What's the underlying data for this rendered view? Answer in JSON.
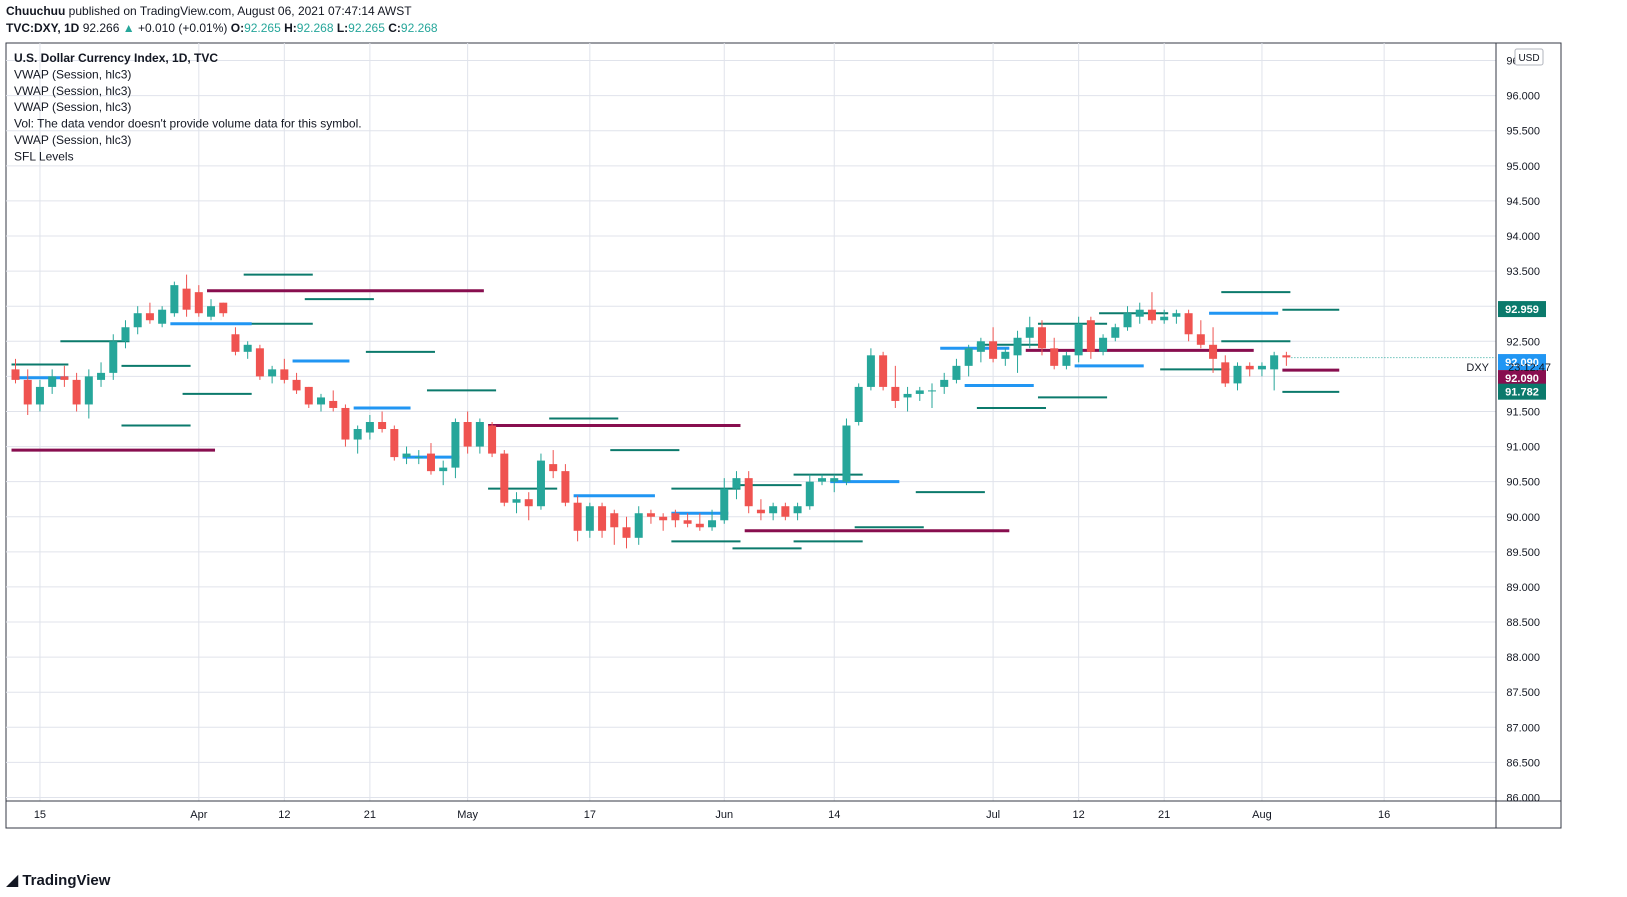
{
  "header": {
    "author": "Chuuchuu",
    "published": "published on TradingView.com, August 06, 2021 07:47:14 AWST",
    "symbol": "TVC:DXY, 1D",
    "price": "92.266",
    "change_arrow": "▲",
    "change": "+0.010 (+0.01%)",
    "o_label": "O:",
    "o_value": "92.265",
    "h_label": "H:",
    "h_value": "92.268",
    "l_label": "L:",
    "l_value": "92.265",
    "c_label": "C:",
    "c_value": "92.268"
  },
  "legend": [
    "U.S. Dollar Currency Index, 1D, TVC",
    "VWAP (Session, hlc3)",
    "VWAP (Session, hlc3)",
    "VWAP (Session, hlc3)",
    "Vol: The data vendor doesn't provide volume data for this symbol.",
    "VWAP (Session, hlc3)",
    "SFL Levels"
  ],
  "currency_badge": "USD",
  "symbol_tag": "DXY",
  "countdown": "23:12:47",
  "footer": {
    "brand": "TradingView",
    "logo_icon": "tradingview-logo-icon"
  },
  "colors": {
    "up": "#26a69a",
    "down": "#ef5350",
    "vwap_blue": "#2196f3",
    "level_teal": "#0b7a6c",
    "level_maroon": "#880e4f",
    "badge_teal": "#0b7a6c",
    "badge_blue": "#2196f3",
    "badge_maroon": "#880e4f"
  },
  "chart_data": {
    "type": "candlestick",
    "y_ticks": [
      "96.500",
      "96.000",
      "95.500",
      "95.000",
      "94.500",
      "94.000",
      "93.500",
      "93.000",
      "92.500",
      "92.000",
      "91.500",
      "91.000",
      "90.500",
      "90.000",
      "89.500",
      "89.000",
      "88.500",
      "88.000",
      "87.500",
      "87.000",
      "86.500",
      "86.000"
    ],
    "ylim": [
      85.95,
      96.75
    ],
    "x_ticks": [
      {
        "label": "15",
        "date": "2021-03-15"
      },
      {
        "label": "Apr",
        "date": "2021-04-01"
      },
      {
        "label": "12",
        "date": "2021-04-12"
      },
      {
        "label": "21",
        "date": "2021-04-21"
      },
      {
        "label": "May",
        "date": "2021-05-03"
      },
      {
        "label": "17",
        "date": "2021-05-17"
      },
      {
        "label": "Jun",
        "date": "2021-06-01"
      },
      {
        "label": "14",
        "date": "2021-06-14"
      },
      {
        "label": "Jul",
        "date": "2021-07-01"
      },
      {
        "label": "12",
        "date": "2021-07-12"
      },
      {
        "label": "21",
        "date": "2021-07-21"
      },
      {
        "label": "Aug",
        "date": "2021-08-02"
      },
      {
        "label": "16",
        "date": "2021-08-16"
      }
    ],
    "candles": [
      {
        "o": 92.1,
        "h": 92.25,
        "l": 91.9,
        "c": 91.95
      },
      {
        "o": 91.95,
        "h": 92.1,
        "l": 91.45,
        "c": 91.6
      },
      {
        "o": 91.6,
        "h": 91.95,
        "l": 91.5,
        "c": 91.85
      },
      {
        "o": 91.85,
        "h": 92.1,
        "l": 91.75,
        "c": 92.0
      },
      {
        "o": 92.0,
        "h": 92.15,
        "l": 91.85,
        "c": 91.95
      },
      {
        "o": 91.95,
        "h": 92.05,
        "l": 91.5,
        "c": 91.6
      },
      {
        "o": 91.6,
        "h": 92.1,
        "l": 91.4,
        "c": 92.0
      },
      {
        "o": 91.95,
        "h": 92.2,
        "l": 91.85,
        "c": 92.05
      },
      {
        "o": 92.05,
        "h": 92.6,
        "l": 91.95,
        "c": 92.5
      },
      {
        "o": 92.5,
        "h": 92.8,
        "l": 92.4,
        "c": 92.7
      },
      {
        "o": 92.7,
        "h": 93.0,
        "l": 92.6,
        "c": 92.9
      },
      {
        "o": 92.9,
        "h": 93.05,
        "l": 92.75,
        "c": 92.8
      },
      {
        "o": 92.75,
        "h": 93.0,
        "l": 92.7,
        "c": 92.95
      },
      {
        "o": 92.9,
        "h": 93.35,
        "l": 92.85,
        "c": 93.3
      },
      {
        "o": 93.25,
        "h": 93.45,
        "l": 92.85,
        "c": 92.95
      },
      {
        "o": 93.2,
        "h": 93.3,
        "l": 92.85,
        "c": 92.9
      },
      {
        "o": 92.85,
        "h": 93.1,
        "l": 92.8,
        "c": 93.0
      },
      {
        "o": 93.05,
        "h": 93.05,
        "l": 92.85,
        "c": 92.9
      },
      {
        "o": 92.6,
        "h": 92.7,
        "l": 92.3,
        "c": 92.35
      },
      {
        "o": 92.35,
        "h": 92.5,
        "l": 92.25,
        "c": 92.45
      },
      {
        "o": 92.4,
        "h": 92.45,
        "l": 91.95,
        "c": 92.0
      },
      {
        "o": 92.0,
        "h": 92.15,
        "l": 91.9,
        "c": 92.1
      },
      {
        "o": 92.1,
        "h": 92.25,
        "l": 91.9,
        "c": 91.95
      },
      {
        "o": 91.95,
        "h": 92.05,
        "l": 91.75,
        "c": 91.8
      },
      {
        "o": 91.85,
        "h": 91.85,
        "l": 91.55,
        "c": 91.6
      },
      {
        "o": 91.6,
        "h": 91.75,
        "l": 91.5,
        "c": 91.7
      },
      {
        "o": 91.65,
        "h": 91.8,
        "l": 91.5,
        "c": 91.55
      },
      {
        "o": 91.55,
        "h": 91.6,
        "l": 91.0,
        "c": 91.1
      },
      {
        "o": 91.1,
        "h": 91.3,
        "l": 90.9,
        "c": 91.25
      },
      {
        "o": 91.2,
        "h": 91.45,
        "l": 91.1,
        "c": 91.35
      },
      {
        "o": 91.35,
        "h": 91.5,
        "l": 91.2,
        "c": 91.25
      },
      {
        "o": 91.25,
        "h": 91.3,
        "l": 90.8,
        "c": 90.85
      },
      {
        "o": 90.85,
        "h": 91.0,
        "l": 90.75,
        "c": 90.9
      },
      {
        "o": 90.85,
        "h": 90.95,
        "l": 90.75,
        "c": 90.85
      },
      {
        "o": 90.9,
        "h": 91.05,
        "l": 90.6,
        "c": 90.65
      },
      {
        "o": 90.65,
        "h": 90.8,
        "l": 90.45,
        "c": 90.7
      },
      {
        "o": 90.7,
        "h": 91.4,
        "l": 90.55,
        "c": 91.35
      },
      {
        "o": 91.35,
        "h": 91.5,
        "l": 90.9,
        "c": 91.0
      },
      {
        "o": 91.0,
        "h": 91.4,
        "l": 90.9,
        "c": 91.35
      },
      {
        "o": 91.3,
        "h": 91.35,
        "l": 90.85,
        "c": 90.9
      },
      {
        "o": 90.9,
        "h": 90.95,
        "l": 90.15,
        "c": 90.2
      },
      {
        "o": 90.2,
        "h": 90.35,
        "l": 90.05,
        "c": 90.25
      },
      {
        "o": 90.25,
        "h": 90.35,
        "l": 89.95,
        "c": 90.15
      },
      {
        "o": 90.15,
        "h": 90.9,
        "l": 90.1,
        "c": 90.8
      },
      {
        "o": 90.75,
        "h": 90.95,
        "l": 90.55,
        "c": 90.65
      },
      {
        "o": 90.65,
        "h": 90.75,
        "l": 90.15,
        "c": 90.2
      },
      {
        "o": 90.2,
        "h": 90.3,
        "l": 89.65,
        "c": 89.8
      },
      {
        "o": 89.8,
        "h": 90.2,
        "l": 89.7,
        "c": 90.15
      },
      {
        "o": 90.15,
        "h": 90.2,
        "l": 89.7,
        "c": 89.8
      },
      {
        "o": 90.05,
        "h": 90.1,
        "l": 89.6,
        "c": 89.85
      },
      {
        "o": 89.85,
        "h": 90.0,
        "l": 89.55,
        "c": 89.7
      },
      {
        "o": 89.7,
        "h": 90.15,
        "l": 89.6,
        "c": 90.05
      },
      {
        "o": 90.05,
        "h": 90.1,
        "l": 89.9,
        "c": 90.0
      },
      {
        "o": 90.0,
        "h": 90.05,
        "l": 89.8,
        "c": 89.95
      },
      {
        "o": 90.05,
        "h": 90.1,
        "l": 89.85,
        "c": 89.95
      },
      {
        "o": 89.95,
        "h": 90.05,
        "l": 89.85,
        "c": 89.9
      },
      {
        "o": 89.9,
        "h": 90.05,
        "l": 89.8,
        "c": 89.85
      },
      {
        "o": 89.85,
        "h": 90.1,
        "l": 89.8,
        "c": 89.95
      },
      {
        "o": 89.95,
        "h": 90.55,
        "l": 89.9,
        "c": 90.4
      },
      {
        "o": 90.4,
        "h": 90.65,
        "l": 90.25,
        "c": 90.55
      },
      {
        "o": 90.55,
        "h": 90.65,
        "l": 90.05,
        "c": 90.15
      },
      {
        "o": 90.1,
        "h": 90.25,
        "l": 89.95,
        "c": 90.05
      },
      {
        "o": 90.05,
        "h": 90.2,
        "l": 89.95,
        "c": 90.15
      },
      {
        "o": 90.15,
        "h": 90.2,
        "l": 89.95,
        "c": 90.0
      },
      {
        "o": 90.05,
        "h": 90.2,
        "l": 89.95,
        "c": 90.15
      },
      {
        "o": 90.15,
        "h": 90.6,
        "l": 90.1,
        "c": 90.5
      },
      {
        "o": 90.5,
        "h": 90.6,
        "l": 90.45,
        "c": 90.55
      },
      {
        "o": 90.5,
        "h": 90.6,
        "l": 90.35,
        "c": 90.55
      },
      {
        "o": 90.5,
        "h": 91.4,
        "l": 90.45,
        "c": 91.3
      },
      {
        "o": 91.35,
        "h": 91.9,
        "l": 91.3,
        "c": 91.85
      },
      {
        "o": 91.85,
        "h": 92.4,
        "l": 91.8,
        "c": 92.3
      },
      {
        "o": 92.3,
        "h": 92.35,
        "l": 91.8,
        "c": 91.85
      },
      {
        "o": 91.85,
        "h": 92.15,
        "l": 91.55,
        "c": 91.65
      },
      {
        "o": 91.7,
        "h": 91.85,
        "l": 91.5,
        "c": 91.75
      },
      {
        "o": 91.75,
        "h": 91.85,
        "l": 91.65,
        "c": 91.8
      },
      {
        "o": 91.8,
        "h": 91.9,
        "l": 91.55,
        "c": 91.8
      },
      {
        "o": 91.85,
        "h": 92.05,
        "l": 91.75,
        "c": 91.95
      },
      {
        "o": 91.95,
        "h": 92.25,
        "l": 91.9,
        "c": 92.15
      },
      {
        "o": 92.15,
        "h": 92.45,
        "l": 92.0,
        "c": 92.4
      },
      {
        "o": 92.35,
        "h": 92.55,
        "l": 92.2,
        "c": 92.5
      },
      {
        "o": 92.5,
        "h": 92.7,
        "l": 92.2,
        "c": 92.25
      },
      {
        "o": 92.25,
        "h": 92.4,
        "l": 92.15,
        "c": 92.35
      },
      {
        "o": 92.3,
        "h": 92.65,
        "l": 92.05,
        "c": 92.55
      },
      {
        "o": 92.55,
        "h": 92.85,
        "l": 92.4,
        "c": 92.7
      },
      {
        "o": 92.7,
        "h": 92.8,
        "l": 92.3,
        "c": 92.4
      },
      {
        "o": 92.4,
        "h": 92.55,
        "l": 92.1,
        "c": 92.15
      },
      {
        "o": 92.15,
        "h": 92.35,
        "l": 92.1,
        "c": 92.3
      },
      {
        "o": 92.3,
        "h": 92.85,
        "l": 92.2,
        "c": 92.75
      },
      {
        "o": 92.8,
        "h": 92.85,
        "l": 92.25,
        "c": 92.35
      },
      {
        "o": 92.35,
        "h": 92.6,
        "l": 92.3,
        "c": 92.55
      },
      {
        "o": 92.55,
        "h": 92.75,
        "l": 92.5,
        "c": 92.7
      },
      {
        "o": 92.7,
        "h": 93.0,
        "l": 92.65,
        "c": 92.9
      },
      {
        "o": 92.85,
        "h": 93.05,
        "l": 92.75,
        "c": 92.95
      },
      {
        "o": 92.95,
        "h": 93.2,
        "l": 92.75,
        "c": 92.8
      },
      {
        "o": 92.8,
        "h": 92.95,
        "l": 92.75,
        "c": 92.85
      },
      {
        "o": 92.85,
        "h": 92.95,
        "l": 92.75,
        "c": 92.9
      },
      {
        "o": 92.9,
        "h": 92.95,
        "l": 92.5,
        "c": 92.6
      },
      {
        "o": 92.6,
        "h": 92.8,
        "l": 92.4,
        "c": 92.45
      },
      {
        "o": 92.45,
        "h": 92.7,
        "l": 92.05,
        "c": 92.25
      },
      {
        "o": 92.2,
        "h": 92.3,
        "l": 91.85,
        "c": 91.9
      },
      {
        "o": 91.9,
        "h": 92.2,
        "l": 91.8,
        "c": 92.15
      },
      {
        "o": 92.15,
        "h": 92.2,
        "l": 92.0,
        "c": 92.1
      },
      {
        "o": 92.1,
        "h": 92.2,
        "l": 92.0,
        "c": 92.15
      },
      {
        "o": 92.1,
        "h": 92.35,
        "l": 91.8,
        "c": 92.3
      },
      {
        "o": 92.3,
        "h": 92.35,
        "l": 92.15,
        "c": 92.27
      }
    ],
    "vwap_segments": [
      {
        "y": 91.98,
        "x0": 0,
        "x1": 4
      },
      {
        "y": 92.75,
        "x0": 13,
        "x1": 19
      },
      {
        "y": 92.22,
        "x0": 23,
        "x1": 27
      },
      {
        "y": 91.55,
        "x0": 28,
        "x1": 32
      },
      {
        "y": 90.85,
        "x0": 32,
        "x1": 36
      },
      {
        "y": 90.3,
        "x0": 46,
        "x1": 52
      },
      {
        "y": 90.05,
        "x0": 54,
        "x1": 58
      },
      {
        "y": 90.5,
        "x0": 67,
        "x1": 72
      },
      {
        "y": 92.4,
        "x0": 76,
        "x1": 81
      },
      {
        "y": 91.87,
        "x0": 78,
        "x1": 83
      },
      {
        "y": 92.15,
        "x0": 87,
        "x1": 92
      },
      {
        "y": 92.9,
        "x0": 98,
        "x1": 103
      }
    ],
    "sfl_levels_teal": [
      {
        "y": 92.17,
        "x0": 0,
        "x1": 4
      },
      {
        "y": 92.5,
        "x0": 4,
        "x1": 9
      },
      {
        "y": 92.15,
        "x0": 9,
        "x1": 14
      },
      {
        "y": 91.3,
        "x0": 9,
        "x1": 14
      },
      {
        "y": 91.75,
        "x0": 14,
        "x1": 19
      },
      {
        "y": 92.75,
        "x0": 19,
        "x1": 24
      },
      {
        "y": 93.45,
        "x0": 19,
        "x1": 24
      },
      {
        "y": 93.1,
        "x0": 24,
        "x1": 29
      },
      {
        "y": 92.35,
        "x0": 29,
        "x1": 34
      },
      {
        "y": 91.8,
        "x0": 34,
        "x1": 39
      },
      {
        "y": 90.4,
        "x0": 39,
        "x1": 44
      },
      {
        "y": 91.4,
        "x0": 44,
        "x1": 49
      },
      {
        "y": 90.95,
        "x0": 49,
        "x1": 54
      },
      {
        "y": 90.4,
        "x0": 54,
        "x1": 59
      },
      {
        "y": 89.65,
        "x0": 54,
        "x1": 59
      },
      {
        "y": 89.55,
        "x0": 59,
        "x1": 64
      },
      {
        "y": 90.45,
        "x0": 59,
        "x1": 64
      },
      {
        "y": 90.6,
        "x0": 64,
        "x1": 69
      },
      {
        "y": 89.65,
        "x0": 64,
        "x1": 69
      },
      {
        "y": 89.85,
        "x0": 69,
        "x1": 74
      },
      {
        "y": 90.35,
        "x0": 74,
        "x1": 79
      },
      {
        "y": 92.45,
        "x0": 79,
        "x1": 84
      },
      {
        "y": 91.55,
        "x0": 79,
        "x1": 84
      },
      {
        "y": 92.75,
        "x0": 84,
        "x1": 89
      },
      {
        "y": 91.7,
        "x0": 84,
        "x1": 89
      },
      {
        "y": 92.9,
        "x0": 89,
        "x1": 94
      },
      {
        "y": 92.1,
        "x0": 94,
        "x1": 99
      },
      {
        "y": 92.5,
        "x0": 99,
        "x1": 104
      },
      {
        "y": 93.2,
        "x0": 99,
        "x1": 104
      },
      {
        "y": 92.95,
        "x0": 104,
        "x1": 108
      },
      {
        "y": 91.78,
        "x0": 104,
        "x1": 108
      }
    ],
    "sfl_levels_maroon": [
      {
        "y": 90.95,
        "x0": 0,
        "x1": 16
      },
      {
        "y": 93.22,
        "x0": 16,
        "x1": 38
      },
      {
        "y": 91.3,
        "x0": 39,
        "x1": 59
      },
      {
        "y": 89.8,
        "x0": 60,
        "x1": 81
      },
      {
        "y": 92.37,
        "x0": 83,
        "x1": 101
      },
      {
        "y": 92.09,
        "x0": 104,
        "x1": 108
      }
    ],
    "price_labels": [
      {
        "value": "92.959",
        "y": 92.959,
        "color": "teal"
      },
      {
        "value": "92.090",
        "y": 92.09,
        "color": "blue"
      },
      {
        "value": "92.090",
        "y": 92.09,
        "color": "maroon"
      },
      {
        "value": "91.782",
        "y": 91.782,
        "color": "teal"
      }
    ],
    "last_price": 92.268
  }
}
